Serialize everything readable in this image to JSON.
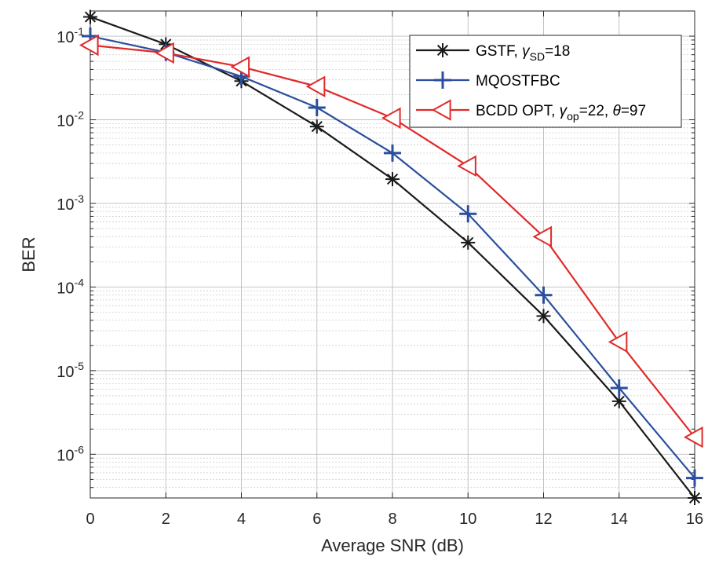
{
  "chart_data": {
    "type": "line",
    "title": "",
    "xlabel": "Average SNR (dB)",
    "ylabel": "BER",
    "xlim": [
      0,
      16
    ],
    "ylim": [
      3e-07,
      0.2
    ],
    "yscale": "log",
    "grid": true,
    "legend_position": "top-right",
    "x_ticks": [
      0,
      2,
      4,
      6,
      8,
      10,
      12,
      14,
      16
    ],
    "y_ticks": [
      {
        "value": 0.1,
        "base": "10",
        "exp": "-1"
      },
      {
        "value": 0.01,
        "base": "10",
        "exp": "-2"
      },
      {
        "value": 0.001,
        "base": "10",
        "exp": "-3"
      },
      {
        "value": 0.0001,
        "base": "10",
        "exp": "-4"
      },
      {
        "value": 1e-05,
        "base": "10",
        "exp": "-5"
      },
      {
        "value": 1e-06,
        "base": "10",
        "exp": "-6"
      }
    ],
    "series": [
      {
        "name": "GSTF",
        "legend_parts": {
          "prefix": "GSTF, ",
          "symbol": "γ",
          "sub": "SD",
          "suffix": "=18"
        },
        "color": "#1a1a1a",
        "marker": "asterisk",
        "x": [
          0,
          2,
          4,
          6,
          8,
          10,
          12,
          14,
          16
        ],
        "values": [
          0.17,
          0.08,
          0.029,
          0.0083,
          0.00195,
          0.00034,
          4.5e-05,
          4.3e-06,
          3e-07
        ]
      },
      {
        "name": "MQOSTFBC",
        "legend_parts": {
          "prefix": "MQOSTFBC",
          "symbol": "",
          "sub": "",
          "suffix": ""
        },
        "color": "#2b4f9e",
        "marker": "plus",
        "x": [
          0,
          2,
          4,
          6,
          8,
          10,
          12,
          14,
          16
        ],
        "values": [
          0.1,
          0.064,
          0.033,
          0.014,
          0.004,
          0.00075,
          8e-05,
          6.2e-06,
          5.2e-07
        ]
      },
      {
        "name": "BCDD OPT",
        "legend_parts": {
          "prefix": "BCDD OPT, ",
          "symbol": "γ",
          "sub": "op",
          "suffix": "=22, ",
          "theta": "θ",
          "theta_suffix": "=97"
        },
        "color": "#e02a2a",
        "marker": "triangle-left",
        "x": [
          0,
          2,
          4,
          6,
          8,
          10,
          12,
          14,
          16
        ],
        "values": [
          0.078,
          0.063,
          0.043,
          0.025,
          0.0105,
          0.0028,
          0.0004,
          2.2e-05,
          1.6e-06
        ]
      }
    ]
  }
}
